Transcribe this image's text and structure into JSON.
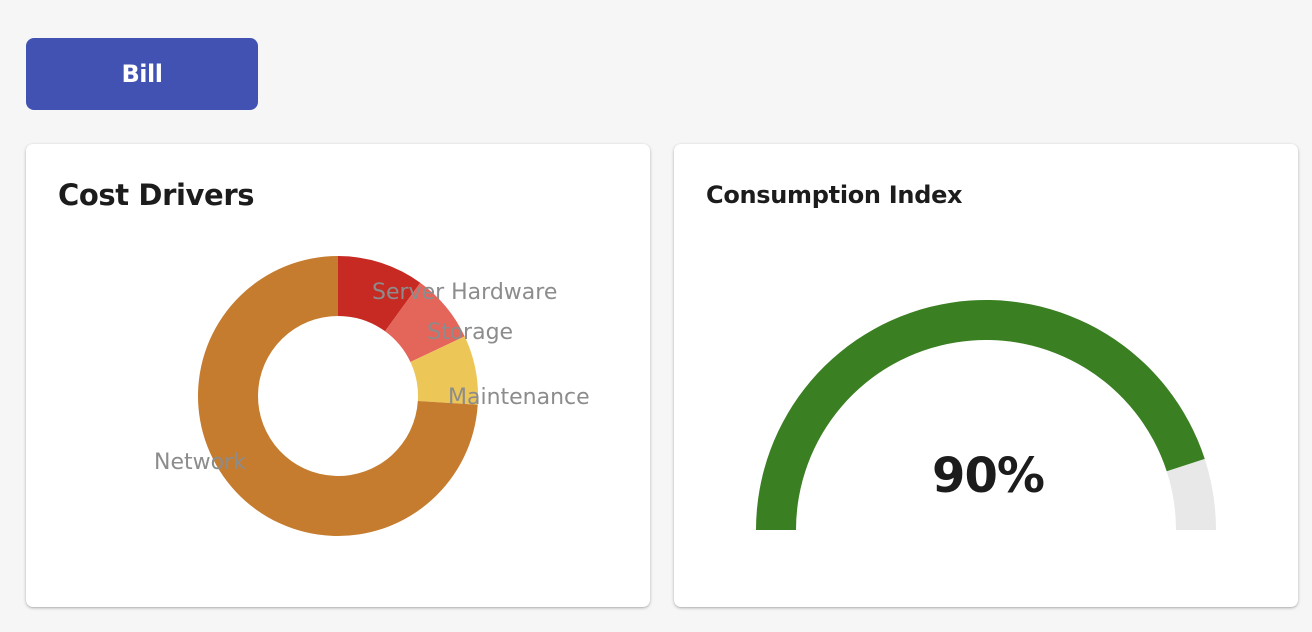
{
  "bill_button": {
    "label": "Bill"
  },
  "cost_drivers": {
    "title": "Cost Drivers"
  },
  "consumption_index": {
    "title": "Consumption Index"
  },
  "chart_data": [
    {
      "type": "pie",
      "subtype": "donut",
      "title": "Cost Drivers",
      "categories": [
        "Server Hardware",
        "Storage",
        "Maintenance",
        "Network"
      ],
      "values": [
        10,
        8,
        8,
        74
      ],
      "colors": [
        "#c62a22",
        "#e4655a",
        "#ecc657",
        "#c57c2e"
      ],
      "legend": "labels-on-chart"
    },
    {
      "type": "gauge",
      "title": "Consumption Index",
      "value": 90,
      "max": 100,
      "display": "90%",
      "fill_color": "#3a7f22",
      "track_color": "#e8e8e8"
    }
  ]
}
